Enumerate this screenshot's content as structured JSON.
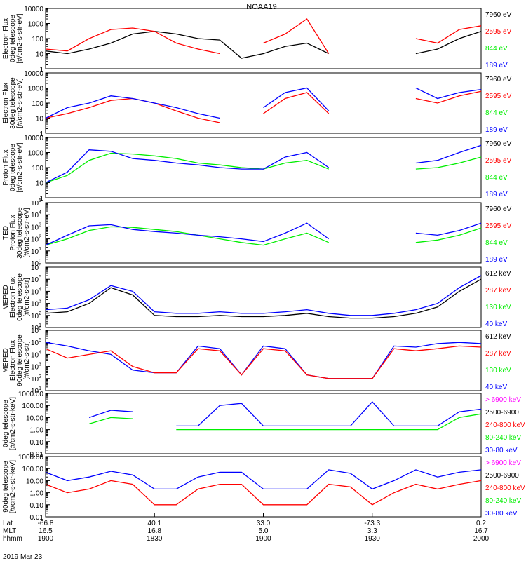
{
  "title": "NOAA19",
  "date": "2019 Mar 23",
  "axis_rows": [
    {
      "label": "Lat",
      "values": [
        "-66.8",
        "40.1",
        "33.0",
        "-73.3",
        "0.2"
      ]
    },
    {
      "label": "MLT",
      "values": [
        "16.5",
        "16.8",
        "5.0",
        "3.3",
        "16.7"
      ]
    },
    {
      "label": "hhmm",
      "values": [
        "1900",
        "1830",
        "1900",
        "1930",
        "2000"
      ]
    }
  ],
  "colors": {
    "black": "#000000",
    "red": "#ff0000",
    "green": "#00ee00",
    "blue": "#0000ff",
    "magenta": "#ff00ff"
  },
  "chart_data": [
    {
      "type": "line",
      "ylabel": [
        "Electron Flux",
        "0deg telescope",
        "[#/cm2-s-str-eV]"
      ],
      "ytype": "log",
      "ylim": [
        1,
        10000
      ],
      "tick_labels": [
        "1",
        "10",
        "100",
        "1000",
        "10000"
      ],
      "legend": [
        {
          "name": "7960 eV",
          "color": "#000000"
        },
        {
          "name": "2595 eV",
          "color": "#ff0000"
        },
        {
          "name": "844 eV",
          "color": "#00ee00"
        },
        {
          "name": "189 eV",
          "color": "#0000ff"
        }
      ],
      "series": [
        {
          "name": "7960 eV",
          "values": [
            15,
            10,
            20,
            50,
            200,
            300,
            200,
            100,
            80,
            5,
            10,
            30,
            50,
            10,
            0,
            0,
            0,
            10,
            20,
            100,
            300
          ]
        },
        {
          "name": "2595 eV",
          "values": [
            20,
            15,
            100,
            400,
            500,
            300,
            50,
            20,
            10,
            0,
            50,
            200,
            2000,
            10,
            0,
            0,
            0,
            100,
            50,
            400,
            700
          ]
        }
      ]
    },
    {
      "type": "line",
      "ylabel": [
        "Electron Flux",
        "30deg telescope",
        "[#/cm2-s-str-eV]"
      ],
      "ytype": "log",
      "ylim": [
        1,
        10000
      ],
      "tick_labels": [
        "1",
        "10",
        "100",
        "1000",
        "10000"
      ],
      "legend": [
        {
          "name": "7960 eV",
          "color": "#000000"
        },
        {
          "name": "2595 eV",
          "color": "#ff0000"
        },
        {
          "name": "844 eV",
          "color": "#00ee00"
        },
        {
          "name": "189 eV",
          "color": "#0000ff"
        }
      ],
      "series": [
        {
          "name": "2595 eV",
          "values": [
            10,
            20,
            50,
            150,
            200,
            100,
            30,
            10,
            5,
            0,
            20,
            200,
            500,
            20,
            0,
            0,
            0,
            200,
            100,
            300,
            600
          ]
        },
        {
          "name": "189 eV",
          "values": [
            10,
            50,
            100,
            300,
            200,
            100,
            50,
            20,
            10,
            0,
            50,
            500,
            1000,
            30,
            0,
            0,
            0,
            1000,
            200,
            500,
            800
          ]
        }
      ]
    },
    {
      "type": "line",
      "ylabel": [
        "Proton Flux",
        "0deg telescope",
        "[#/cm2-s-str-eV]"
      ],
      "ytype": "log",
      "ylim": [
        1,
        10000
      ],
      "tick_labels": [
        "1",
        "10",
        "100",
        "1000",
        "10000"
      ],
      "legend": [
        {
          "name": "7960 eV",
          "color": "#000000"
        },
        {
          "name": "2595 eV",
          "color": "#ff0000"
        },
        {
          "name": "844 eV",
          "color": "#00ee00"
        },
        {
          "name": "189 eV",
          "color": "#0000ff"
        }
      ],
      "series": [
        {
          "name": "844 eV",
          "values": [
            10,
            30,
            300,
            900,
            800,
            600,
            400,
            200,
            150,
            100,
            80,
            200,
            300,
            80,
            0,
            0,
            0,
            80,
            100,
            200,
            500
          ]
        },
        {
          "name": "189 eV",
          "values": [
            10,
            50,
            1500,
            1200,
            400,
            300,
            200,
            150,
            100,
            80,
            80,
            500,
            1000,
            100,
            0,
            0,
            0,
            200,
            300,
            1000,
            3000
          ]
        }
      ]
    },
    {
      "type": "line",
      "ylabel": [
        "TED",
        "Proton Flux",
        "30deg telescope",
        "[#/cm2-s-str-eV]"
      ],
      "ytype": "log",
      "ylim": [
        1,
        100000
      ],
      "tick_labels": [
        "10^0",
        "10^1",
        "10^2",
        "10^3",
        "10^4",
        "10^5"
      ],
      "legend": [
        {
          "name": "7960 eV",
          "color": "#000000"
        },
        {
          "name": "2595 eV",
          "color": "#ff0000"
        },
        {
          "name": "844 eV",
          "color": "#00ee00"
        },
        {
          "name": "189 eV",
          "color": "#0000ff"
        }
      ],
      "series": [
        {
          "name": "844 eV",
          "values": [
            30,
            100,
            500,
            1000,
            900,
            600,
            400,
            200,
            100,
            50,
            30,
            100,
            300,
            50,
            0,
            0,
            0,
            50,
            80,
            200,
            800
          ]
        },
        {
          "name": "189 eV",
          "values": [
            30,
            200,
            1200,
            1500,
            600,
            400,
            300,
            200,
            150,
            100,
            60,
            300,
            2000,
            100,
            0,
            0,
            0,
            300,
            200,
            500,
            2000
          ]
        }
      ]
    },
    {
      "type": "line",
      "ylabel": [
        "MEPED",
        "Electron Flux",
        "0deg telescope",
        "[#/cm2-s-str]"
      ],
      "ytype": "log",
      "ylim": [
        10,
        1000000
      ],
      "tick_labels": [
        "10^1",
        "10^2",
        "10^3",
        "10^4",
        "10^5",
        "10^6"
      ],
      "legend": [
        {
          "name": "612 keV",
          "color": "#000000"
        },
        {
          "name": "287 keV",
          "color": "#ff0000"
        },
        {
          "name": "130 keV",
          "color": "#00ee00"
        },
        {
          "name": "40 keV",
          "color": "#0000ff"
        }
      ],
      "series": [
        {
          "name": "40 keV",
          "values": [
            300,
            400,
            2000,
            30000,
            10000,
            200,
            150,
            150,
            200,
            150,
            150,
            200,
            300,
            150,
            100,
            100,
            150,
            300,
            1000,
            20000,
            200000
          ]
        },
        {
          "name": "612 keV",
          "values": [
            150,
            200,
            1000,
            20000,
            5000,
            100,
            80,
            80,
            100,
            80,
            80,
            100,
            150,
            80,
            60,
            60,
            80,
            150,
            500,
            10000,
            100000
          ]
        }
      ]
    },
    {
      "type": "line",
      "ylabel": [
        "MEPED",
        "Electron Flux",
        "90deg telescope",
        "[#/cm2-s-str]"
      ],
      "ytype": "log",
      "ylim": [
        10,
        1000000
      ],
      "tick_labels": [
        "10^1",
        "10^2",
        "10^3",
        "10^4",
        "10^5",
        "10^6"
      ],
      "legend": [
        {
          "name": "612 keV",
          "color": "#000000"
        },
        {
          "name": "287 keV",
          "color": "#ff0000"
        },
        {
          "name": "130 keV",
          "color": "#00ee00"
        },
        {
          "name": "40 keV",
          "color": "#0000ff"
        }
      ],
      "series": [
        {
          "name": "40 keV",
          "values": [
            100000,
            50000,
            20000,
            10000,
            500,
            300,
            300,
            50000,
            30000,
            200,
            50000,
            30000,
            200,
            100,
            100,
            100,
            50000,
            40000,
            80000,
            100000,
            80000
          ]
        },
        {
          "name": "287 keV",
          "values": [
            30000,
            5000,
            10000,
            20000,
            1000,
            300,
            300,
            30000,
            20000,
            200,
            30000,
            20000,
            200,
            100,
            100,
            100,
            30000,
            20000,
            30000,
            50000,
            40000
          ]
        }
      ]
    },
    {
      "type": "line",
      "ylabel": [
        "0deg telescope",
        "[#/cm2-s-str-keV]"
      ],
      "ytype": "log",
      "ylim": [
        0.01,
        1000
      ],
      "tick_labels": [
        "0.01",
        "0.10",
        "1.00",
        "10.00",
        "100.00",
        "1000.00"
      ],
      "legend": [
        {
          "name": "> 6900 keV",
          "color": "#ff00ff"
        },
        {
          "name": "2500-6900",
          "color": "#000000"
        },
        {
          "name": "240-800 keV",
          "color": "#ff0000"
        },
        {
          "name": "80-240 keV",
          "color": "#00ee00"
        },
        {
          "name": "30-80 keV",
          "color": "#0000ff"
        }
      ],
      "series": [
        {
          "name": "30-80 keV",
          "values": [
            0,
            0,
            10,
            40,
            30,
            0,
            2,
            2,
            100,
            150,
            2,
            2,
            2,
            2,
            2,
            200,
            2,
            2,
            2,
            30,
            50
          ]
        },
        {
          "name": "80-240 keV",
          "values": [
            0,
            0,
            3,
            10,
            8,
            0,
            1,
            1,
            1,
            1,
            1,
            1,
            1,
            1,
            1,
            1,
            1,
            1,
            1,
            10,
            20
          ]
        }
      ]
    },
    {
      "type": "line",
      "ylabel": [
        "90deg telescope",
        "[#/cm2-s-str-keV]"
      ],
      "ytype": "log",
      "ylim": [
        0.01,
        1000
      ],
      "tick_labels": [
        "0.01",
        "0.10",
        "1.00",
        "10.00",
        "100.00",
        "1000.00"
      ],
      "legend": [
        {
          "name": "> 6900 keV",
          "color": "#ff00ff"
        },
        {
          "name": "2500-6900",
          "color": "#000000"
        },
        {
          "name": "240-800 keV",
          "color": "#ff0000"
        },
        {
          "name": "80-240 keV",
          "color": "#00ee00"
        },
        {
          "name": "30-80 keV",
          "color": "#0000ff"
        }
      ],
      "series": [
        {
          "name": "30-80 keV",
          "values": [
            50,
            10,
            20,
            60,
            30,
            2,
            2,
            20,
            50,
            50,
            2,
            2,
            2,
            80,
            40,
            2,
            10,
            80,
            20,
            50,
            80
          ]
        },
        {
          "name": "240-800 keV",
          "values": [
            5,
            1,
            2,
            10,
            5,
            0.1,
            0.1,
            2,
            5,
            5,
            0.1,
            0.1,
            0.1,
            5,
            3,
            0.1,
            1,
            5,
            2,
            5,
            10
          ]
        }
      ]
    }
  ]
}
